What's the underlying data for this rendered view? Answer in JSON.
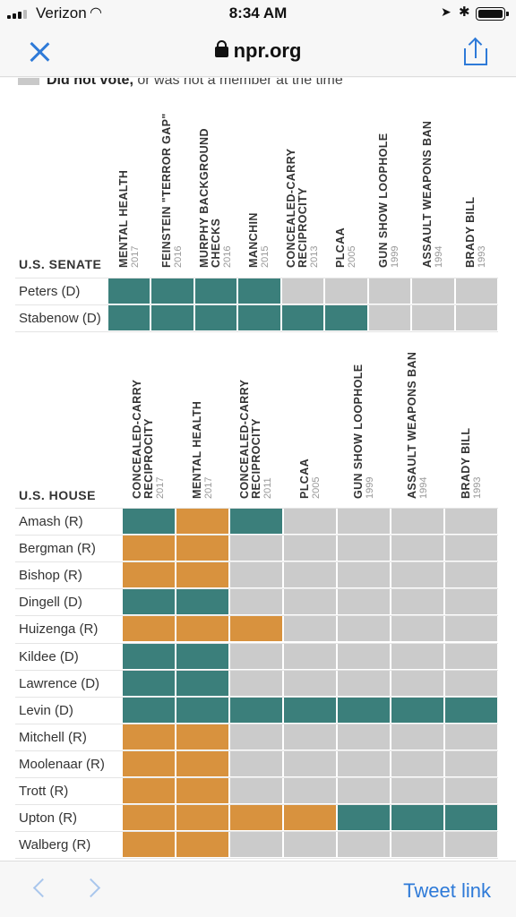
{
  "status_bar": {
    "carrier": "Verizon",
    "time": "8:34 AM",
    "icons": [
      "signal-icon",
      "wifi-icon",
      "location-icon",
      "bluetooth-icon",
      "battery-icon"
    ]
  },
  "nav": {
    "domain": "npr.org",
    "close_icon": "close-icon",
    "share_icon": "share-icon",
    "lock_icon": "lock-icon"
  },
  "legend": {
    "bold_text": "Did not vote,",
    "text": " or was not a member at the time",
    "color": "#cbcbcb"
  },
  "colors": {
    "yes": "#3b7f7b",
    "no": "#d8923e",
    "absent": "#cbcbcb",
    "accent": "#2e7ad8"
  },
  "senate": {
    "label": "U.S. SENATE",
    "columns": [
      {
        "title": "MENTAL HEALTH",
        "year": "2017"
      },
      {
        "title": "FEINSTEIN \"TERROR GAP\"",
        "year": "2016"
      },
      {
        "title": "MURPHY BACKGROUND CHECKS",
        "year": "2016"
      },
      {
        "title": "MANCHIN",
        "year": "2015"
      },
      {
        "title": "CONCEALED-CARRY RECIPROCITY",
        "year": "2013"
      },
      {
        "title": "PLCAA",
        "year": "2005"
      },
      {
        "title": "GUN SHOW LOOPHOLE",
        "year": "1999"
      },
      {
        "title": "ASSAULT WEAPONS BAN",
        "year": "1994"
      },
      {
        "title": "BRADY BILL",
        "year": "1993"
      }
    ],
    "rows": [
      {
        "name": "Peters (D)",
        "votes": [
          "y",
          "y",
          "y",
          "y",
          "x",
          "x",
          "x",
          "x",
          "x"
        ]
      },
      {
        "name": "Stabenow (D)",
        "votes": [
          "y",
          "y",
          "y",
          "y",
          "y",
          "y",
          "x",
          "x",
          "x"
        ]
      }
    ]
  },
  "house": {
    "label": "U.S. HOUSE",
    "columns": [
      {
        "title": "CONCEALED-CARRY RECIPROCITY",
        "year": "2017"
      },
      {
        "title": "MENTAL HEALTH",
        "year": "2017"
      },
      {
        "title": "CONCEALED-CARRY RECIPROCITY",
        "year": "2011"
      },
      {
        "title": "PLCAA",
        "year": "2005"
      },
      {
        "title": "GUN SHOW LOOPHOLE",
        "year": "1999"
      },
      {
        "title": "ASSAULT WEAPONS BAN",
        "year": "1994"
      },
      {
        "title": "BRADY BILL",
        "year": "1993"
      }
    ],
    "rows": [
      {
        "name": "Amash (R)",
        "votes": [
          "y",
          "n",
          "y",
          "x",
          "x",
          "x",
          "x"
        ]
      },
      {
        "name": "Bergman (R)",
        "votes": [
          "n",
          "n",
          "x",
          "x",
          "x",
          "x",
          "x"
        ]
      },
      {
        "name": "Bishop (R)",
        "votes": [
          "n",
          "n",
          "x",
          "x",
          "x",
          "x",
          "x"
        ]
      },
      {
        "name": "Dingell (D)",
        "votes": [
          "y",
          "y",
          "x",
          "x",
          "x",
          "x",
          "x"
        ]
      },
      {
        "name": "Huizenga (R)",
        "votes": [
          "n",
          "n",
          "n",
          "x",
          "x",
          "x",
          "x"
        ]
      },
      {
        "name": "Kildee (D)",
        "votes": [
          "y",
          "y",
          "x",
          "x",
          "x",
          "x",
          "x"
        ]
      },
      {
        "name": "Lawrence (D)",
        "votes": [
          "y",
          "y",
          "x",
          "x",
          "x",
          "x",
          "x"
        ]
      },
      {
        "name": "Levin (D)",
        "votes": [
          "y",
          "y",
          "y",
          "y",
          "y",
          "y",
          "y"
        ]
      },
      {
        "name": "Mitchell (R)",
        "votes": [
          "n",
          "n",
          "x",
          "x",
          "x",
          "x",
          "x"
        ]
      },
      {
        "name": "Moolenaar (R)",
        "votes": [
          "n",
          "n",
          "x",
          "x",
          "x",
          "x",
          "x"
        ]
      },
      {
        "name": "Trott (R)",
        "votes": [
          "n",
          "n",
          "x",
          "x",
          "x",
          "x",
          "x"
        ]
      },
      {
        "name": "Upton (R)",
        "votes": [
          "n",
          "n",
          "n",
          "n",
          "y",
          "y",
          "y"
        ]
      },
      {
        "name": "Walberg (R)",
        "votes": [
          "n",
          "n",
          "x",
          "x",
          "x",
          "x",
          "x"
        ]
      }
    ]
  },
  "toolbar": {
    "back_icon": "chevron-left-icon",
    "forward_icon": "chevron-right-icon",
    "tweet_label": "Tweet link"
  }
}
